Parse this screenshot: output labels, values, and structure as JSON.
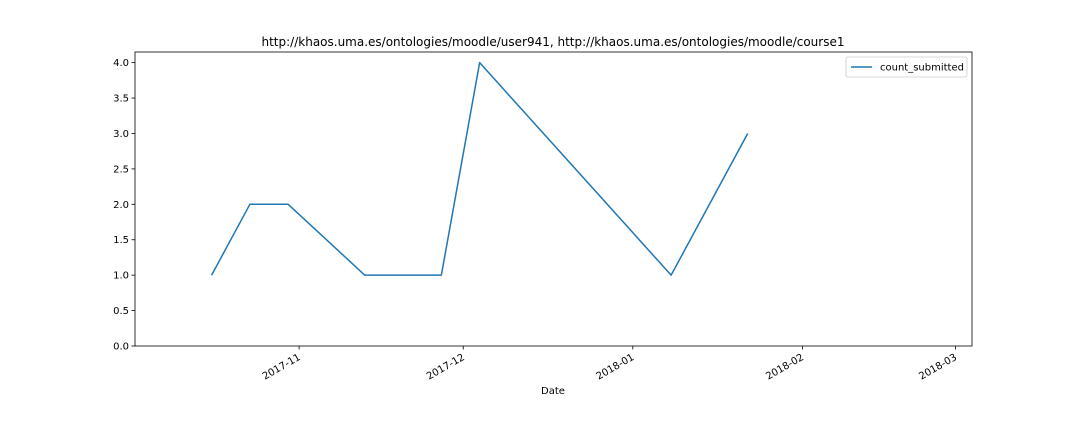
{
  "chart_data": {
    "type": "line",
    "title": "http://khaos.uma.es/ontologies/moodle/user941, http://khaos.uma.es/ontologies/moodle/course1",
    "xlabel": "Date",
    "ylabel": "",
    "x_type": "date",
    "xlim": [
      "2017-10-02",
      "2018-03-04"
    ],
    "ylim": [
      0,
      4.15
    ],
    "x_ticks": [
      "2017-11-01",
      "2017-12-01",
      "2018-01-01",
      "2018-02-01",
      "2018-03-01"
    ],
    "x_tick_labels": [
      "2017-11",
      "2017-12",
      "2018-01",
      "2018-02",
      "2018-03"
    ],
    "y_ticks": [
      0.0,
      0.5,
      1.0,
      1.5,
      2.0,
      2.5,
      3.0,
      3.5,
      4.0
    ],
    "y_tick_labels": [
      "0.0",
      "0.5",
      "1.0",
      "1.5",
      "2.0",
      "2.5",
      "3.0",
      "3.5",
      "4.0"
    ],
    "grid": false,
    "legend_position": "top-right",
    "series": [
      {
        "name": "count_submitted",
        "color": "#1f77b4",
        "x": [
          "2017-10-16",
          "2017-10-23",
          "2017-10-30",
          "2017-11-13",
          "2017-11-27",
          "2017-12-04",
          "2018-01-08",
          "2018-01-22"
        ],
        "y": [
          1,
          2,
          2,
          1,
          1,
          4,
          1,
          3
        ]
      }
    ]
  }
}
